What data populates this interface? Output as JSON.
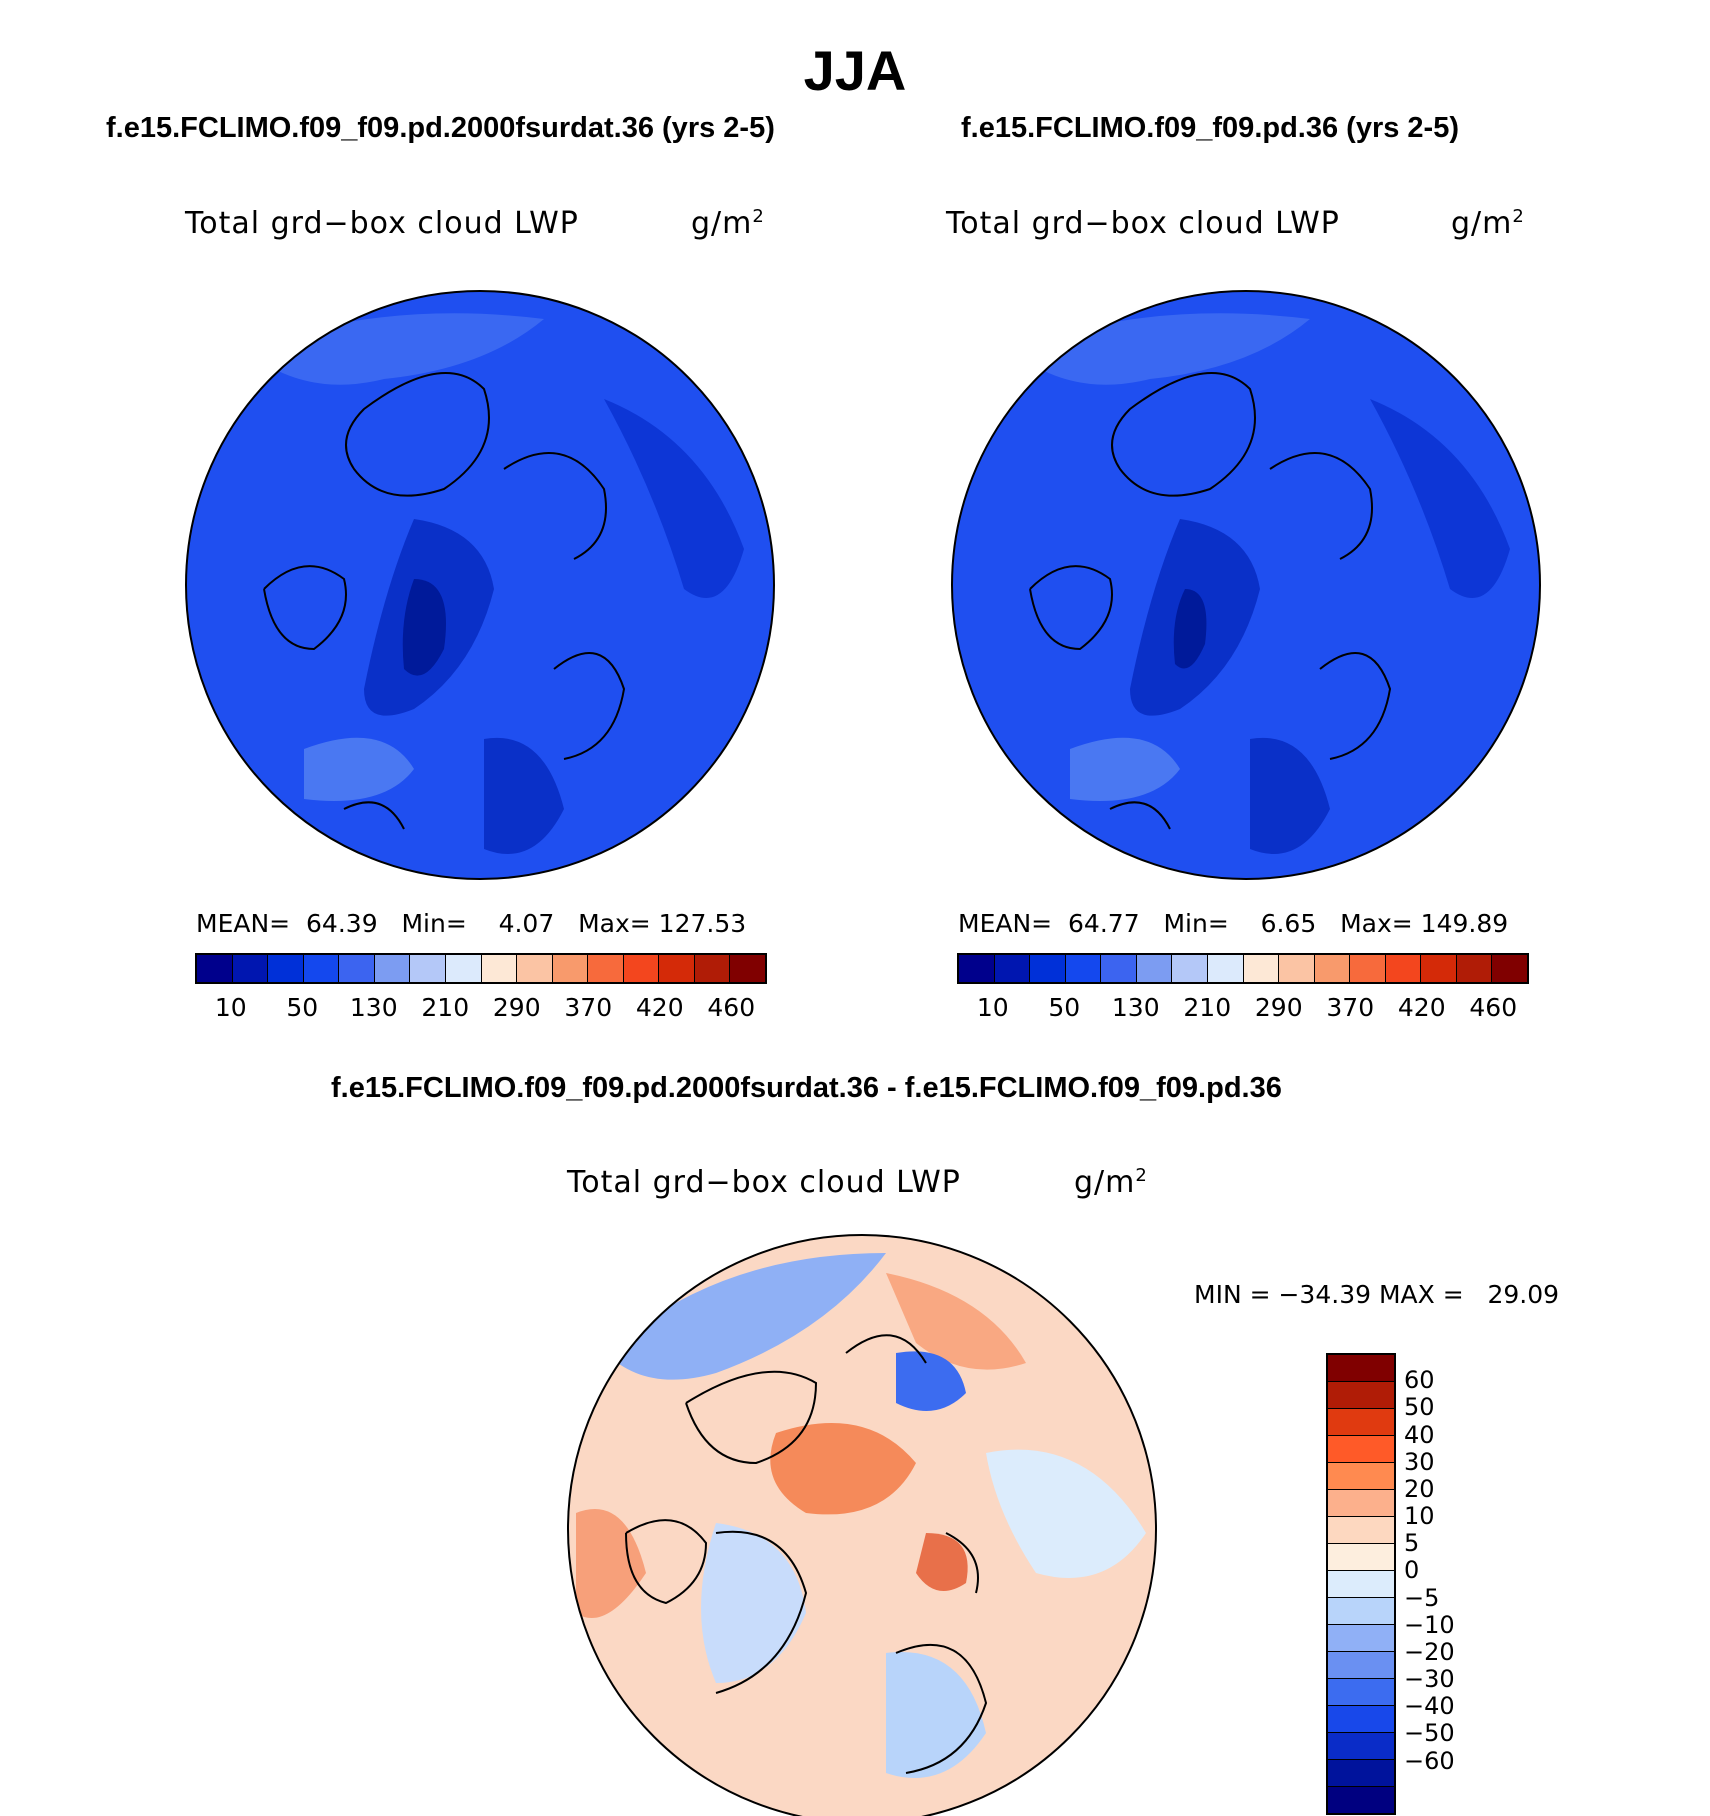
{
  "season": "JJA",
  "panels": [
    {
      "case": "f.e15.FCLIMO.f09_f09.pd.2000fsurdat.36 (yrs 2-5)",
      "variable": "Total grd−box cloud LWP",
      "units": "g/m",
      "units_exp": "2",
      "stats": {
        "mean_label": "MEAN=",
        "mean": "64.39",
        "min_label": "Min=",
        "min": "4.07",
        "max_label": "Max=",
        "max": "127.53"
      }
    },
    {
      "case": "f.e15.FCLIMO.f09_f09.pd.36 (yrs 2-5)",
      "variable": "Total grd−box cloud LWP",
      "units": "g/m",
      "units_exp": "2",
      "stats": {
        "mean_label": "MEAN=",
        "mean": "64.77",
        "min_label": "Min=",
        "min": "6.65",
        "max_label": "Max=",
        "max": "149.89"
      }
    }
  ],
  "top_colorbar": {
    "colors": [
      "#00008c",
      "#0016b0",
      "#0030d8",
      "#1448ee",
      "#3c64f0",
      "#7c9cf2",
      "#b4c8f8",
      "#dceafc",
      "#fde8d6",
      "#fbc4a4",
      "#f89a6c",
      "#f76a3c",
      "#f3461e",
      "#d42a08",
      "#b01c06",
      "#800000"
    ],
    "tick_labels": [
      "10",
      "50",
      "130",
      "210",
      "290",
      "370",
      "420",
      "460"
    ]
  },
  "diff_panel": {
    "case": "f.e15.FCLIMO.f09_f09.pd.2000fsurdat.36 - f.e15.FCLIMO.f09_f09.pd.36",
    "variable": "Total grd−box cloud LWP",
    "units": "g/m",
    "units_exp": "2",
    "minmax": "MIN = −34.39 MAX =   29.09",
    "colorbar": {
      "colors": [
        "#800000",
        "#b01c06",
        "#e03a10",
        "#ff5a28",
        "#ff8a50",
        "#fcb08c",
        "#fdd8c0",
        "#fdeede",
        "#dcecfc",
        "#b8d4fa",
        "#90b0f6",
        "#6a90f2",
        "#3c6cf0",
        "#1848ea",
        "#0a2cc8",
        "#00139c",
        "#000080"
      ],
      "tick_labels": [
        "60",
        "50",
        "40",
        "30",
        "20",
        "10",
        "5",
        "0",
        "−5",
        "−10",
        "−20",
        "−30",
        "−40",
        "−50",
        "−60"
      ]
    }
  },
  "colors": {
    "base_blue": "#1f4ff0",
    "light_blue": "#4a78f2",
    "dark_blue": "#0a30c8",
    "darkest_blue": "#001a9a",
    "diff_land_light": "#dcecfc",
    "diff_pos": "#fbc0a0"
  }
}
